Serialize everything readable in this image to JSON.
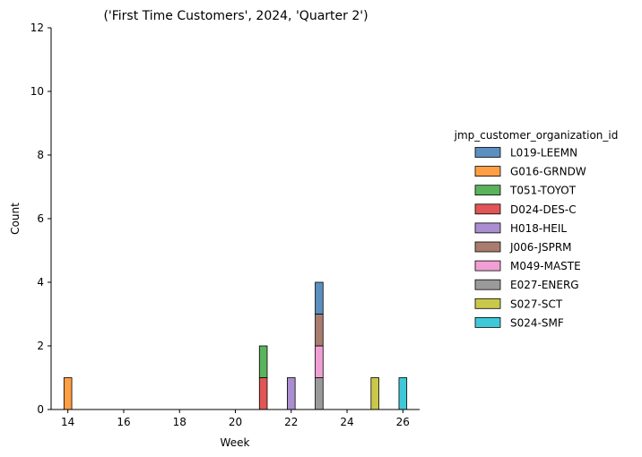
{
  "chart_data": {
    "type": "bar",
    "stacked": true,
    "title": "('First Time Customers', 2024, 'Quarter 2')",
    "xlabel": "Week",
    "ylabel": "Count",
    "xlim": [
      13.4,
      26.6
    ],
    "ylim": [
      0,
      12
    ],
    "xticks": [
      14,
      16,
      18,
      20,
      22,
      24,
      26
    ],
    "yticks": [
      0,
      2,
      4,
      6,
      8,
      10,
      12
    ],
    "grid": false,
    "legend": {
      "title": "jmp_customer_organization_id",
      "placement": "center-right"
    },
    "series": [
      {
        "name": "L019-LEEMN",
        "color": "#5a8fbf",
        "points": [
          {
            "x": 23,
            "y": 1
          }
        ]
      },
      {
        "name": "G016-GRNDW",
        "color": "#ff9f45",
        "points": [
          {
            "x": 14,
            "y": 1
          }
        ]
      },
      {
        "name": "T051-TOYOT",
        "color": "#5bb35b",
        "points": [
          {
            "x": 21,
            "y": 1
          }
        ]
      },
      {
        "name": "D024-DES-C",
        "color": "#e05555",
        "points": [
          {
            "x": 21,
            "y": 1
          }
        ]
      },
      {
        "name": "H018-HEIL",
        "color": "#ab8ed1",
        "points": [
          {
            "x": 22,
            "y": 1
          }
        ]
      },
      {
        "name": "J006-JSPRM",
        "color": "#a87c6f",
        "points": [
          {
            "x": 23,
            "y": 1
          }
        ]
      },
      {
        "name": "M049-MASTE",
        "color": "#f09fd4",
        "points": [
          {
            "x": 23,
            "y": 1
          }
        ]
      },
      {
        "name": "E027-ENERG",
        "color": "#9a9a9a",
        "points": [
          {
            "x": 23,
            "y": 1
          }
        ]
      },
      {
        "name": "S027-SCT",
        "color": "#c9c84a",
        "points": [
          {
            "x": 25,
            "y": 1
          }
        ]
      },
      {
        "name": "S024-SMF",
        "color": "#3fc9d8",
        "points": [
          {
            "x": 26,
            "y": 1
          }
        ]
      }
    ]
  }
}
